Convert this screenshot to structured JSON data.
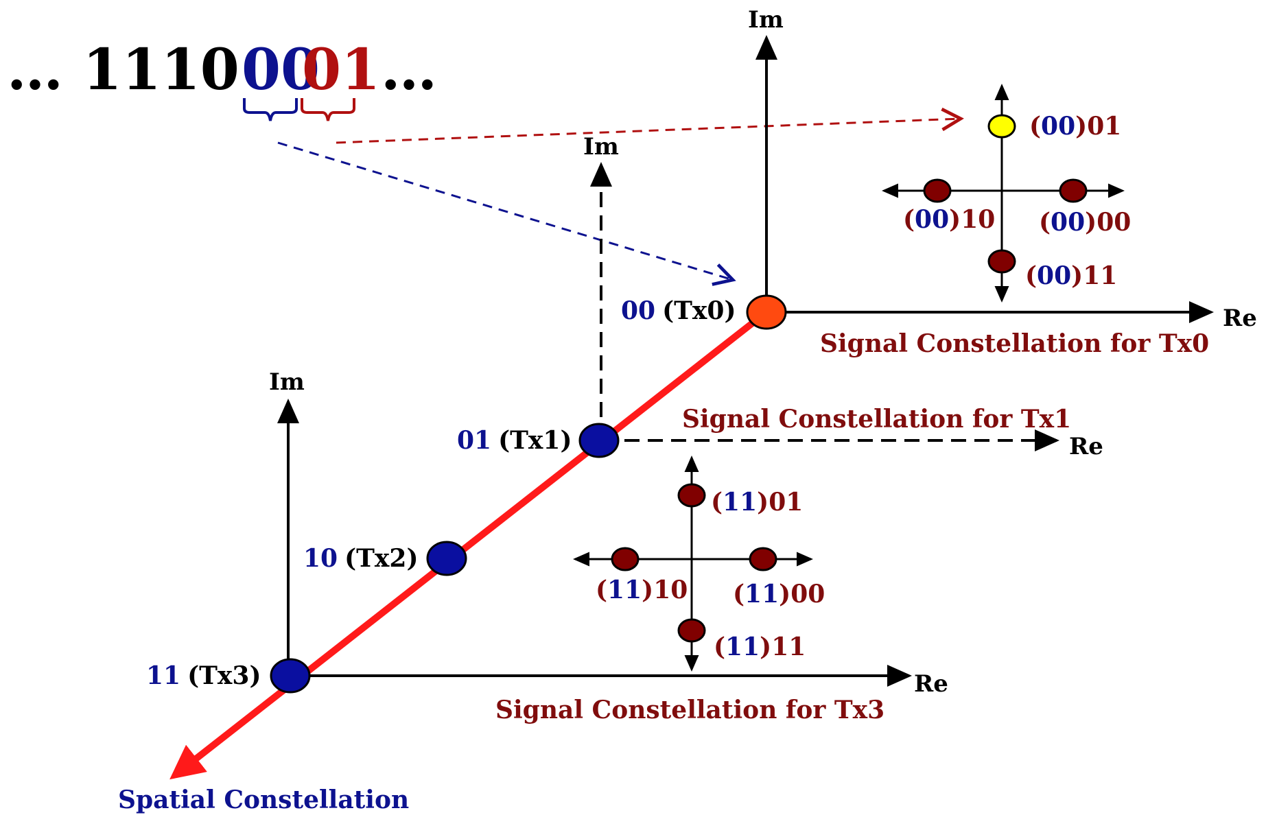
{
  "colors": {
    "blue": "#0d128f",
    "dark_red": "#800d0d",
    "bright_red": "#ff1a1a",
    "orange": "#ff4a10",
    "yellow": "#ffff00",
    "symbol_fill": "#800000",
    "antenna_fill": "#0a0fa0"
  },
  "bitstream": {
    "prefix": "… 1110",
    "spatial_bits": "00",
    "signal_bits": "01",
    "suffix": "…"
  },
  "axes": {
    "im": "Im",
    "re": "Re"
  },
  "spatial": {
    "caption": "Spatial Constellation",
    "antennas": [
      {
        "bits": "00",
        "tx": "(Tx0)"
      },
      {
        "bits": "01",
        "tx": "(Tx1)"
      },
      {
        "bits": "10",
        "tx": "(Tx2)"
      },
      {
        "bits": "11",
        "tx": "(Tx3)"
      }
    ]
  },
  "constellations": {
    "tx0": {
      "caption": "Signal Constellation for Tx0",
      "prefix": "00",
      "points": [
        {
          "bits": "01",
          "selected": true
        },
        {
          "bits": "10",
          "selected": false
        },
        {
          "bits": "00",
          "selected": false
        },
        {
          "bits": "11",
          "selected": false
        }
      ]
    },
    "tx1": {
      "caption": "Signal Constellation for Tx1"
    },
    "tx3": {
      "caption": "Signal Constellation for Tx3",
      "prefix": "11",
      "points": [
        {
          "bits": "01"
        },
        {
          "bits": "10"
        },
        {
          "bits": "00"
        },
        {
          "bits": "11"
        }
      ]
    }
  }
}
